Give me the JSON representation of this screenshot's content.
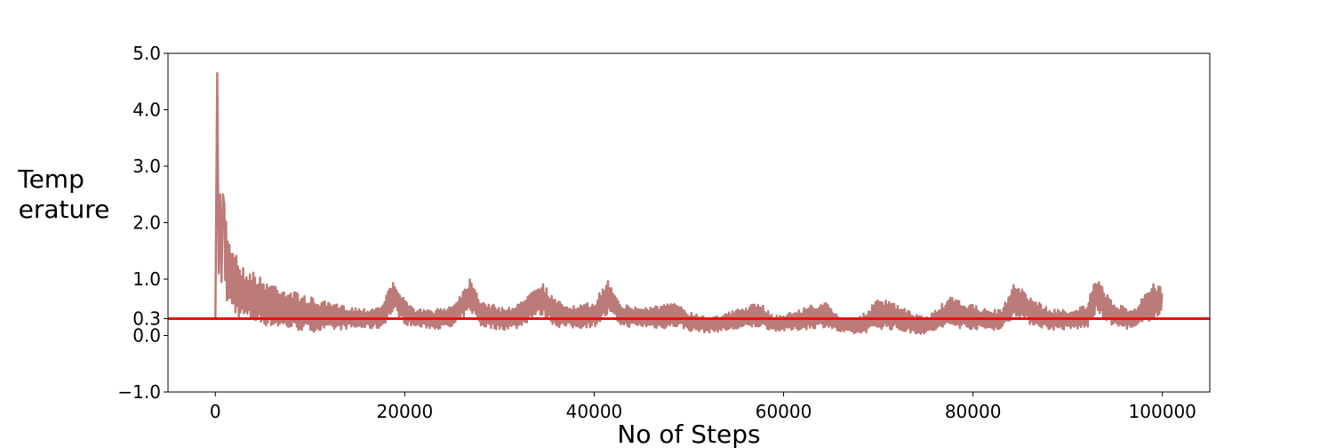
{
  "chart_data": {
    "type": "line",
    "title": "",
    "xlabel": "No of Steps",
    "ylabel_lines": [
      "Temp",
      "erature"
    ],
    "xlim": [
      -5000,
      105000
    ],
    "ylim": [
      -1.0,
      5.0
    ],
    "xticks": [
      0,
      20000,
      40000,
      60000,
      80000,
      100000
    ],
    "xtick_labels": [
      "0",
      "20000",
      "40000",
      "60000",
      "80000",
      "100000"
    ],
    "yticks": [
      -1.0,
      0.0,
      0.3,
      1.0,
      2.0,
      3.0,
      4.0,
      5.0
    ],
    "ytick_labels": [
      "−1.0",
      "0.0",
      "0.3",
      "1.0",
      "2.0",
      "3.0",
      "4.0",
      "5.0"
    ],
    "grid": false,
    "series": [
      {
        "color": "#bc7a78",
        "x": [
          0,
          200,
          300,
          500,
          800,
          1200,
          1500,
          2000,
          2500,
          3000,
          4000,
          5000,
          6000,
          7000,
          8000,
          9000,
          10000,
          12000,
          14000,
          16000,
          17500,
          18500,
          19000,
          20000,
          21000,
          23000,
          25000,
          26500,
          27000,
          28000,
          30000,
          32000,
          33500,
          34500,
          36000,
          38000,
          40000,
          41500,
          42000,
          43000,
          45000,
          47000,
          49000,
          50000,
          52000,
          54000,
          56000,
          57500,
          59000,
          61000,
          63000,
          64500,
          66000,
          68000,
          70000,
          71500,
          73000,
          75000,
          76000,
          77500,
          79000,
          81000,
          83000,
          84500,
          86000,
          88000,
          90000,
          92000,
          93000,
          95000,
          97000,
          99000,
          100000
        ],
        "upper": [
          0.3,
          4.65,
          3.2,
          2.5,
          2.5,
          2.05,
          1.7,
          1.65,
          1.35,
          1.2,
          1.15,
          1.0,
          0.95,
          0.88,
          0.8,
          0.75,
          0.68,
          0.58,
          0.52,
          0.48,
          0.55,
          0.9,
          0.98,
          0.62,
          0.48,
          0.45,
          0.55,
          0.9,
          1.07,
          0.65,
          0.5,
          0.55,
          0.9,
          0.95,
          0.62,
          0.52,
          0.6,
          1.02,
          0.85,
          0.55,
          0.5,
          0.55,
          0.58,
          0.42,
          0.35,
          0.4,
          0.52,
          0.58,
          0.35,
          0.42,
          0.55,
          0.58,
          0.32,
          0.32,
          0.65,
          0.6,
          0.45,
          0.32,
          0.45,
          0.68,
          0.6,
          0.48,
          0.45,
          0.98,
          0.7,
          0.48,
          0.45,
          0.55,
          1.02,
          0.55,
          0.48,
          0.92,
          0.85
        ],
        "lower": [
          0.3,
          1.1,
          1.0,
          0.95,
          0.7,
          0.55,
          0.45,
          0.35,
          0.3,
          0.28,
          0.22,
          0.18,
          0.15,
          0.12,
          0.1,
          0.08,
          0.06,
          0.08,
          0.12,
          0.12,
          0.12,
          0.35,
          0.4,
          0.2,
          0.15,
          0.12,
          0.12,
          0.35,
          0.42,
          0.15,
          0.1,
          0.12,
          0.3,
          0.35,
          0.15,
          0.12,
          0.15,
          0.35,
          0.3,
          0.15,
          0.15,
          0.12,
          0.15,
          0.08,
          0.05,
          0.08,
          0.12,
          0.15,
          0.08,
          0.08,
          0.12,
          0.15,
          0.05,
          0.02,
          0.12,
          0.1,
          0.05,
          0.02,
          0.08,
          0.15,
          0.12,
          0.1,
          0.1,
          0.35,
          0.2,
          0.1,
          0.1,
          0.12,
          0.38,
          0.15,
          0.1,
          0.3,
          0.35
        ]
      }
    ],
    "reference_line": {
      "y": 0.3,
      "color": "#e8130f"
    }
  }
}
